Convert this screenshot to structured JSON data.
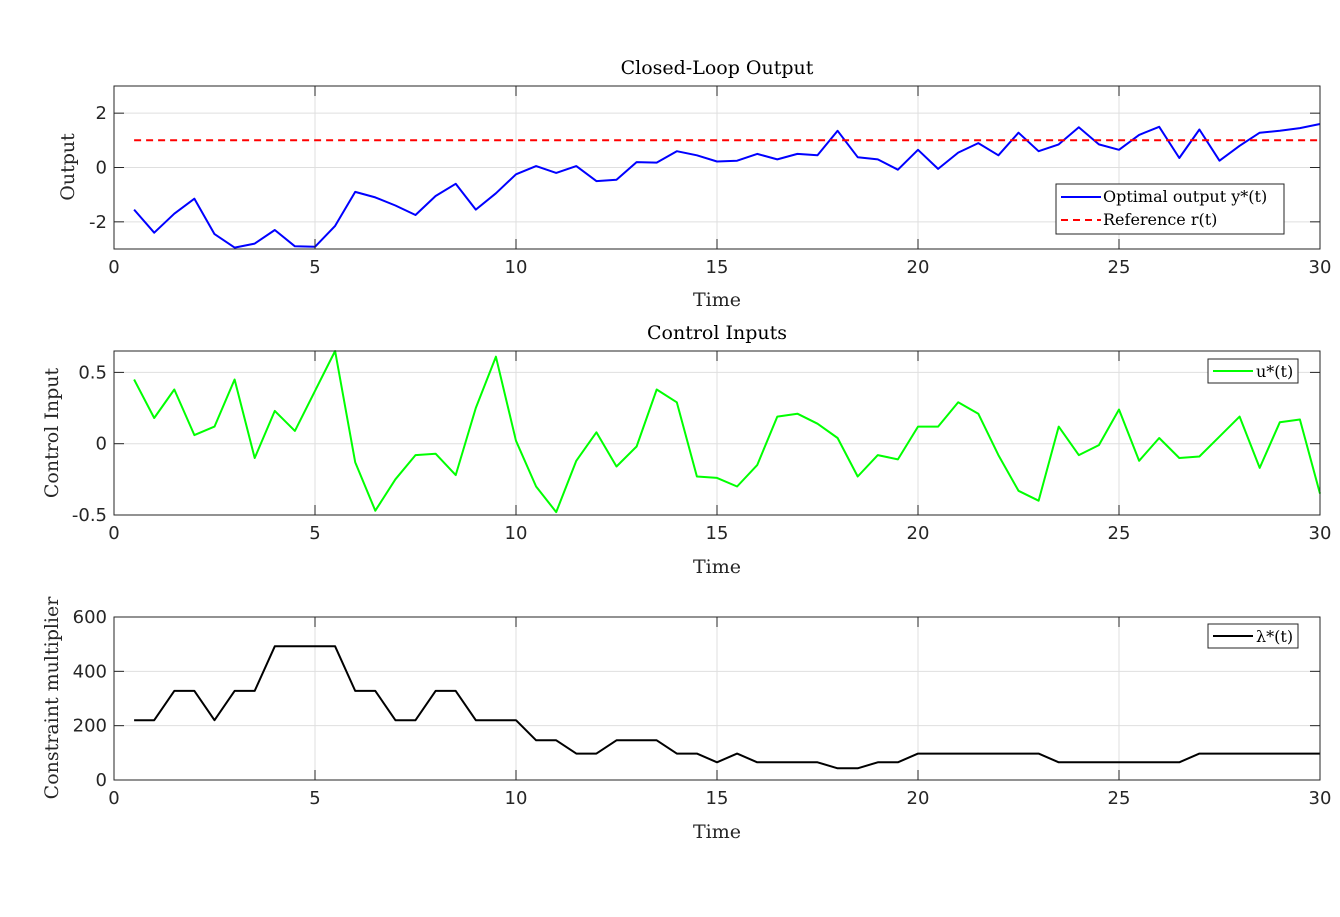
{
  "chart_data": [
    {
      "type": "line",
      "title": "Closed-Loop Output",
      "xlabel": "Time",
      "ylabel": "Output",
      "xlim": [
        0,
        30
      ],
      "ylim": [
        -3,
        3
      ],
      "xticks": [
        "0",
        "5",
        "10",
        "15",
        "20",
        "25",
        "30"
      ],
      "yticks": [
        "2",
        "0",
        "-2"
      ],
      "grid": true,
      "legend_position": "lower-right",
      "series": [
        {
          "name": "Optimal output y*(t)",
          "color": "#0000ff",
          "style": "solid",
          "x": [
            0.5,
            1,
            1.5,
            2,
            2.5,
            3,
            3.5,
            4,
            4.5,
            5,
            5.5,
            6,
            6.5,
            7,
            7.5,
            8,
            8.5,
            9,
            9.5,
            10,
            10.5,
            11,
            11.5,
            12,
            12.5,
            13,
            13.5,
            14,
            14.5,
            15,
            15.5,
            16,
            16.5,
            17,
            17.5,
            18,
            18.5,
            19,
            19.5,
            20,
            20.5,
            21,
            21.5,
            22,
            22.5,
            23,
            23.5,
            24,
            24.5,
            25,
            25.5,
            26,
            26.5,
            27,
            27.5,
            28,
            28.5,
            29,
            29.5,
            30
          ],
          "y": [
            -1.55,
            -2.4,
            -1.7,
            -1.15,
            -2.45,
            -2.95,
            -2.8,
            -2.3,
            -2.9,
            -2.92,
            -2.15,
            -0.9,
            -1.1,
            -1.4,
            -1.75,
            -1.05,
            -0.6,
            -1.55,
            -0.95,
            -0.25,
            0.05,
            -0.2,
            0.05,
            -0.5,
            -0.45,
            0.2,
            0.18,
            0.6,
            0.45,
            0.22,
            0.25,
            0.5,
            0.3,
            0.5,
            0.45,
            1.35,
            0.38,
            0.3,
            -0.08,
            0.65,
            -0.05,
            0.55,
            0.9,
            0.45,
            1.28,
            0.6,
            0.85,
            1.48,
            0.85,
            0.65,
            1.2,
            1.5,
            0.35,
            1.4,
            0.25,
            0.8,
            1.28,
            1.35,
            1.45,
            1.6
          ]
        },
        {
          "name": "Reference r(t)",
          "color": "#ff0000",
          "style": "dashed",
          "x": [
            0.5,
            30
          ],
          "y": [
            1,
            1
          ]
        }
      ]
    },
    {
      "type": "line",
      "title": "Control Inputs",
      "xlabel": "Time",
      "ylabel": "Control Input",
      "xlim": [
        0,
        30
      ],
      "ylim": [
        -0.5,
        0.65
      ],
      "xticks": [
        "0",
        "5",
        "10",
        "15",
        "20",
        "25",
        "30"
      ],
      "yticks": [
        "0.5",
        "0",
        "-0.5"
      ],
      "grid": true,
      "legend_position": "top-right",
      "series": [
        {
          "name": "u*(t)",
          "color": "#00ff00",
          "style": "solid",
          "x": [
            0.5,
            1,
            1.5,
            2,
            2.5,
            3,
            3.5,
            4,
            4.5,
            5,
            5.5,
            6,
            6.5,
            7,
            7.5,
            8,
            8.5,
            9,
            9.5,
            10,
            10.5,
            11,
            11.5,
            12,
            12.5,
            13,
            13.5,
            14,
            14.5,
            15,
            15.5,
            16,
            16.5,
            17,
            17.5,
            18,
            18.5,
            19,
            19.5,
            20,
            20.5,
            21,
            21.5,
            22,
            22.5,
            23,
            23.5,
            24,
            24.5,
            25,
            25.5,
            26,
            26.5,
            27,
            27.5,
            28,
            28.5,
            29,
            29.5,
            30
          ],
          "y": [
            0.45,
            0.18,
            0.38,
            0.06,
            0.12,
            0.45,
            -0.1,
            0.23,
            0.09,
            0.37,
            0.65,
            -0.13,
            -0.47,
            -0.25,
            -0.08,
            -0.07,
            -0.22,
            0.25,
            0.61,
            0.02,
            -0.3,
            -0.48,
            -0.12,
            0.08,
            -0.16,
            -0.02,
            0.38,
            0.29,
            -0.23,
            -0.24,
            -0.3,
            -0.15,
            0.19,
            0.21,
            0.14,
            0.04,
            -0.23,
            -0.08,
            -0.11,
            0.12,
            0.12,
            0.29,
            0.21,
            -0.08,
            -0.33,
            -0.4,
            0.12,
            -0.08,
            -0.01,
            0.24,
            -0.12,
            0.04,
            -0.1,
            -0.09,
            0.05,
            0.19,
            -0.17,
            0.15,
            0.17,
            -0.35
          ]
        }
      ]
    },
    {
      "type": "line",
      "title": "",
      "xlabel": "Time",
      "ylabel": "Constraint multiplier",
      "xlim": [
        0,
        30
      ],
      "ylim": [
        0,
        600
      ],
      "xticks": [
        "0",
        "5",
        "10",
        "15",
        "20",
        "25",
        "30"
      ],
      "yticks": [
        "600",
        "400",
        "200",
        "0"
      ],
      "grid": true,
      "legend_position": "top-right",
      "series": [
        {
          "name": "λ*(t)",
          "color": "#000000",
          "style": "solid",
          "x": [
            0.5,
            1,
            1.5,
            2,
            2.5,
            3,
            3.5,
            4,
            4.5,
            5,
            5.5,
            6,
            6.5,
            7,
            7.5,
            8,
            8.5,
            9,
            9.5,
            10,
            10.5,
            11,
            11.5,
            12,
            12.5,
            13,
            13.5,
            14,
            14.5,
            15,
            15.5,
            16,
            16.5,
            17,
            17.5,
            18,
            18.5,
            19,
            19.5,
            20,
            20.5,
            21,
            21.5,
            22,
            22.5,
            23,
            23.5,
            24,
            24.5,
            25,
            25.5,
            26,
            26.5,
            27,
            27.5,
            28,
            28.5,
            29,
            29.5,
            30
          ],
          "y": [
            220,
            220,
            328,
            328,
            220,
            328,
            328,
            492,
            492,
            492,
            492,
            328,
            328,
            220,
            220,
            328,
            328,
            220,
            220,
            220,
            146,
            146,
            97,
            97,
            146,
            146,
            146,
            97,
            97,
            65,
            97,
            65,
            65,
            65,
            65,
            43,
            43,
            65,
            65,
            97,
            97,
            97,
            97,
            97,
            97,
            97,
            65,
            65,
            65,
            65,
            65,
            65,
            65,
            97,
            97,
            97,
            97,
            97,
            97,
            97
          ]
        }
      ]
    }
  ]
}
